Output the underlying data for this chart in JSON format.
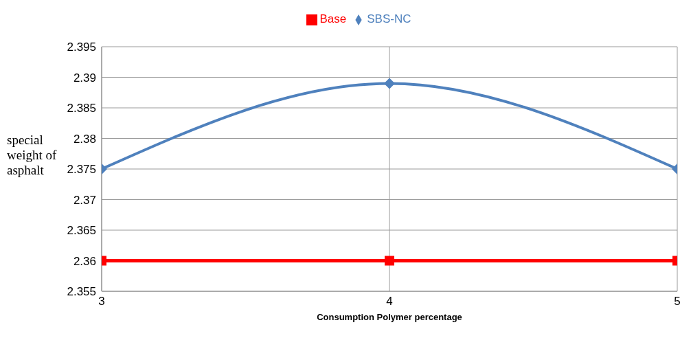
{
  "chart_data": {
    "type": "line",
    "xlabel": "Consumption Polymer percentage",
    "ylabel": "special weight of asphalt",
    "x": [
      3,
      4,
      5
    ],
    "series": [
      {
        "name": "SBS-NC",
        "color": "#4f81bd",
        "marker": "diamond",
        "values": [
          2.375,
          2.389,
          2.375
        ]
      },
      {
        "name": "Base",
        "color": "#ff0000",
        "marker": "square",
        "values": [
          2.36,
          2.36,
          2.36
        ]
      }
    ],
    "xlim": [
      3,
      5
    ],
    "xticks": [
      3,
      4,
      5
    ],
    "ylim": [
      2.355,
      2.395
    ],
    "yticks": [
      2.355,
      2.36,
      2.365,
      2.37,
      2.375,
      2.38,
      2.385,
      2.39,
      2.395
    ],
    "grid": true,
    "legend": "top"
  }
}
